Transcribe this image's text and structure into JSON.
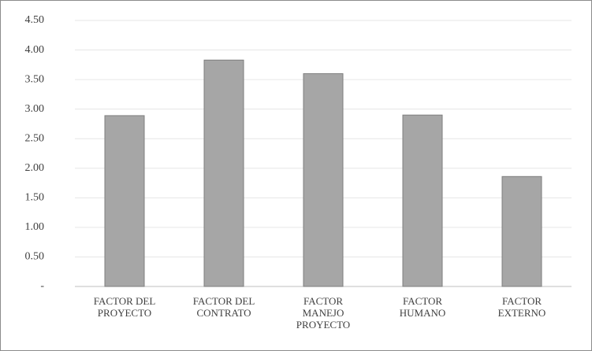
{
  "chart_data": {
    "type": "bar",
    "categories": [
      "FACTOR DEL PROYECTO",
      "FACTOR DEL CONTRATO",
      "FACTOR MANEJO PROYECTO",
      "FACTOR HUMANO",
      "FACTOR EXTERNO"
    ],
    "values": [
      2.89,
      3.83,
      3.6,
      2.9,
      1.86
    ],
    "color": "#a6a6a6",
    "ylim": [
      0,
      4.5
    ],
    "yticks": [
      {
        "value": 0,
        "label": "-"
      },
      {
        "value": 0.5,
        "label": "0.50"
      },
      {
        "value": 1,
        "label": "1.00"
      },
      {
        "value": 1.5,
        "label": "1.50"
      },
      {
        "value": 2,
        "label": "2.00"
      },
      {
        "value": 2.5,
        "label": "2.50"
      },
      {
        "value": 3,
        "label": "3.00"
      },
      {
        "value": 3.5,
        "label": "3.50"
      },
      {
        "value": 4,
        "label": "4.00"
      },
      {
        "value": 4.5,
        "label": "4.50"
      }
    ],
    "grid": true
  }
}
